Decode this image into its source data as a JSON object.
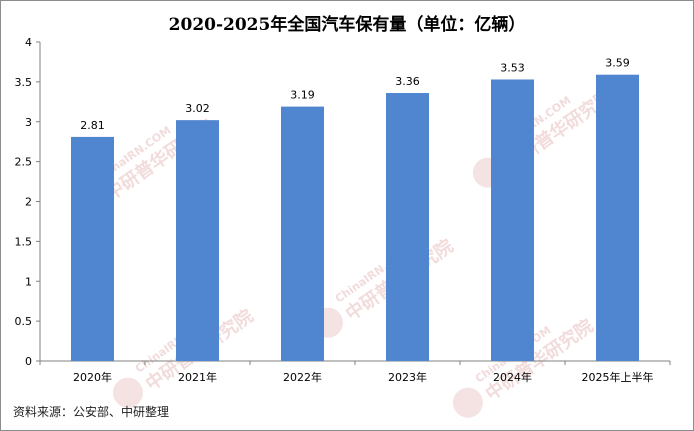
{
  "chart_data": {
    "type": "bar",
    "title": "2020-2025年全国汽车保有量（单位：亿辆）",
    "categories": [
      "2020年",
      "2021年",
      "2022年",
      "2023年",
      "2024年",
      "2025年上半年"
    ],
    "values": [
      2.81,
      3.02,
      3.19,
      3.36,
      3.53,
      3.59
    ],
    "data_labels": [
      "2.81",
      "3.02",
      "3.19",
      "3.36",
      "3.53",
      "3.59"
    ],
    "yticks": [
      "0",
      "0.5",
      "1",
      "1.5",
      "2",
      "2.5",
      "3",
      "3.5",
      "4"
    ],
    "ylim": [
      0,
      4
    ],
    "grid": false,
    "legend": "none",
    "bar_color": "#4f86cf",
    "xlabel": "",
    "ylabel": ""
  },
  "footer": {
    "source": "资料来源：公安部、中研整理"
  },
  "watermark": {
    "text": "ChinaIRN.COM",
    "brand": "中研普华研究院",
    "logo": "CIRN",
    "color": "#e3b0b0"
  }
}
